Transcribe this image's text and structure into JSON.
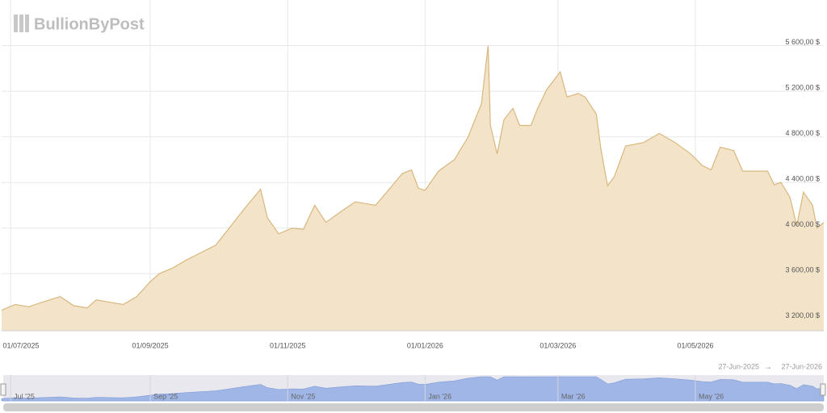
{
  "chart_data": {
    "type": "area",
    "watermark": "BullionByPost",
    "color": "#d8b77e",
    "fill": "#f3e4c9",
    "grid": true,
    "xlim": [
      "2025-06-27",
      "2026-06-27"
    ],
    "ylim": [
      3100,
      6000
    ],
    "yticks": [
      {
        "value": 3200,
        "label": "3 200,00 $"
      },
      {
        "value": 3600,
        "label": "3 600,00 $"
      },
      {
        "value": 4000,
        "label": "4 000,00 $"
      },
      {
        "value": 4400,
        "label": "4 400,00 $"
      },
      {
        "value": 4800,
        "label": "4 800,00 $"
      },
      {
        "value": 5200,
        "label": "5 200,00 $"
      },
      {
        "value": 5600,
        "label": "5 600,00 $"
      }
    ],
    "xticks": [
      {
        "value": "2025-07-01",
        "label": "01/07/2025"
      },
      {
        "value": "2025-09-01",
        "label": "01/09/2025"
      },
      {
        "value": "2025-11-01",
        "label": "01/11/2025"
      },
      {
        "value": "2026-01-01",
        "label": "01/01/2026"
      },
      {
        "value": "2026-03-01",
        "label": "01/03/2026"
      },
      {
        "value": "2026-05-01",
        "label": "01/05/2026"
      }
    ],
    "x": [
      "2025-06-27",
      "2025-07-03",
      "2025-07-09",
      "2025-07-15",
      "2025-07-23",
      "2025-07-29",
      "2025-08-04",
      "2025-08-08",
      "2025-08-14",
      "2025-08-20",
      "2025-08-26",
      "2025-09-01",
      "2025-09-05",
      "2025-09-11",
      "2025-09-17",
      "2025-09-23",
      "2025-09-30",
      "2025-10-08",
      "2025-10-14",
      "2025-10-20",
      "2025-10-23",
      "2025-10-28",
      "2025-11-03",
      "2025-11-08",
      "2025-11-13",
      "2025-11-18",
      "2025-11-25",
      "2025-12-01",
      "2025-12-10",
      "2025-12-15",
      "2025-12-22",
      "2025-12-26",
      "2025-12-29",
      "2026-01-01",
      "2026-01-07",
      "2026-01-14",
      "2026-01-20",
      "2026-01-26",
      "2026-01-29",
      "2026-01-30",
      "2026-02-02",
      "2026-02-05",
      "2026-02-09",
      "2026-02-12",
      "2026-02-17",
      "2026-02-20",
      "2026-02-24",
      "2026-03-02",
      "2026-03-05",
      "2026-03-10",
      "2026-03-13",
      "2026-03-18",
      "2026-03-20",
      "2026-03-23",
      "2026-03-26",
      "2026-03-31",
      "2026-04-08",
      "2026-04-15",
      "2026-04-22",
      "2026-04-29",
      "2026-05-04",
      "2026-05-08",
      "2026-05-12",
      "2026-05-18",
      "2026-05-22",
      "2026-05-28",
      "2026-06-02",
      "2026-06-05",
      "2026-06-08",
      "2026-06-12",
      "2026-06-15",
      "2026-06-18",
      "2026-06-22",
      "2026-06-24",
      "2026-06-27"
    ],
    "values": [
      3280,
      3330,
      3310,
      3350,
      3400,
      3320,
      3300,
      3370,
      3350,
      3330,
      3400,
      3530,
      3600,
      3650,
      3720,
      3780,
      3850,
      4050,
      4200,
      4340,
      4090,
      3950,
      4000,
      3990,
      4200,
      4050,
      4150,
      4230,
      4200,
      4315,
      4480,
      4510,
      4350,
      4330,
      4500,
      4600,
      4795,
      5090,
      5600,
      4900,
      4650,
      4950,
      5050,
      4900,
      4900,
      5050,
      5214,
      5370,
      5150,
      5180,
      5150,
      5000,
      4700,
      4370,
      4450,
      4720,
      4750,
      4830,
      4750,
      4650,
      4550,
      4510,
      4710,
      4680,
      4500,
      4500,
      4500,
      4380,
      4400,
      4270,
      4020,
      4315,
      4200,
      4000,
      4050
    ],
    "navigator": {
      "color": "#9fb6e6",
      "range_from": "27-Jun-2025",
      "range_separator": "→",
      "range_to": "27-Jun-2026",
      "xticks": [
        {
          "value": "2025-07-01",
          "label": "Jul '25"
        },
        {
          "value": "2025-09-01",
          "label": "Sep '25"
        },
        {
          "value": "2025-11-01",
          "label": "Nov '25"
        },
        {
          "value": "2026-01-01",
          "label": "Jan '26"
        },
        {
          "value": "2026-03-01",
          "label": "Mar '26"
        },
        {
          "value": "2026-05-01",
          "label": "May '26"
        }
      ]
    }
  }
}
